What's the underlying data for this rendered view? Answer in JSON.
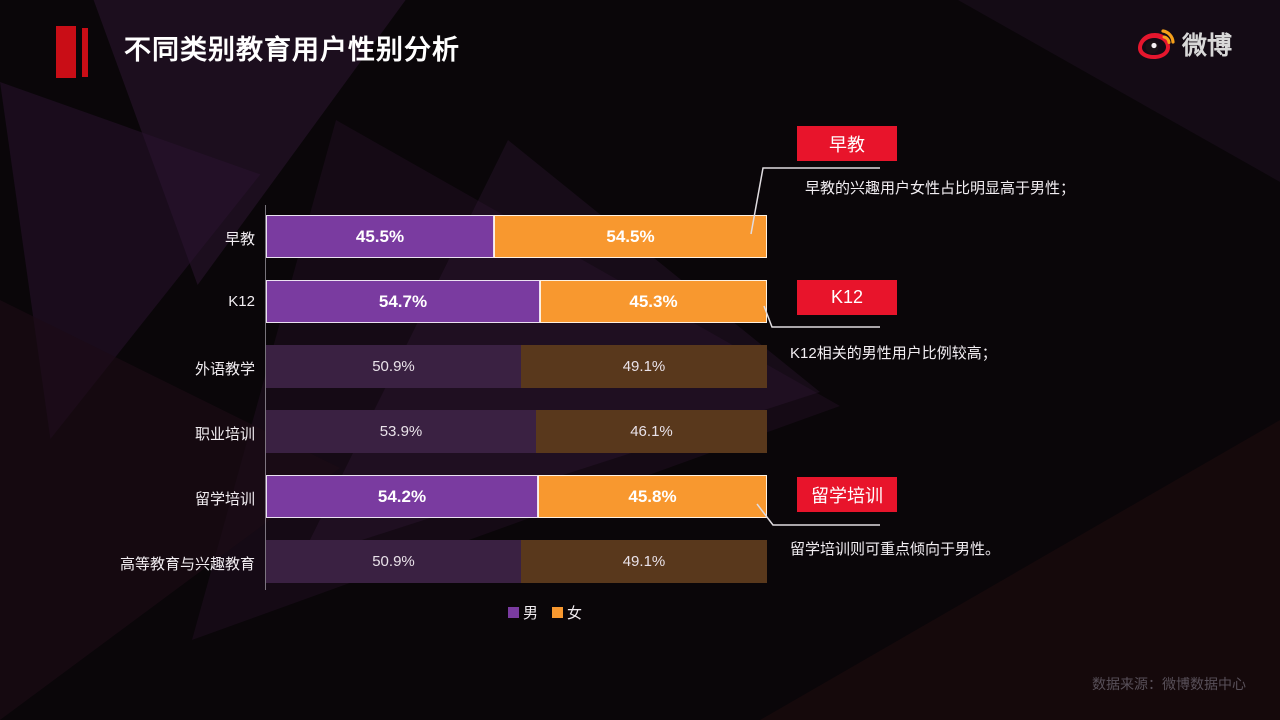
{
  "slide": {
    "title": "不同类别教育用户性别分析",
    "source": "数据来源：微博数据中心",
    "logo_text": "微博"
  },
  "legend": {
    "male": "男",
    "female": "女"
  },
  "colors": {
    "accent_red": "#c90d16",
    "callout_red": "#e8142b",
    "male_bright": "#7a3ba0",
    "female_bright": "#f8982f",
    "male_dim": "#3a2142",
    "female_dim": "#59381c"
  },
  "chart_data": {
    "type": "bar",
    "orientation": "horizontal-stacked",
    "title": "不同类别教育用户性别分析",
    "categories": [
      "早教",
      "K12",
      "外语教学",
      "职业培训",
      "留学培训",
      "高等教育与兴趣教育"
    ],
    "series": [
      {
        "name": "男",
        "values": [
          45.5,
          54.7,
          50.9,
          53.9,
          54.2,
          50.9
        ]
      },
      {
        "name": "女",
        "values": [
          54.5,
          45.3,
          49.1,
          46.1,
          45.8,
          49.1
        ]
      }
    ],
    "highlighted": [
      true,
      true,
      false,
      false,
      true,
      false
    ],
    "xlim": [
      0,
      100
    ],
    "legend_position": "bottom",
    "grid": false
  },
  "callouts": [
    {
      "label": "早教",
      "text": "早教的兴趣用户女性占比明显高于男性；"
    },
    {
      "label": "K12",
      "text": "K12相关的男性用户比例较高；"
    },
    {
      "label": "留学培训",
      "text": "留学培训则可重点倾向于男性。"
    }
  ]
}
